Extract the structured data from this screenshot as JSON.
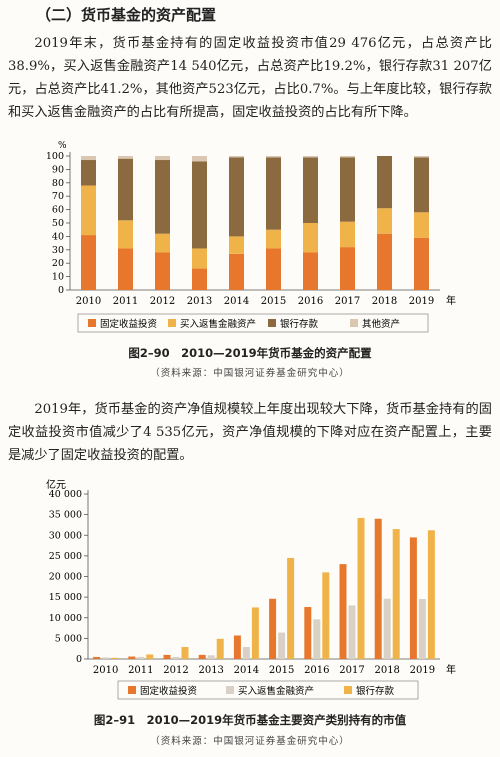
{
  "section": {
    "heading": "（二）货币基金的资产配置",
    "para1": "2019年末，货币基金持有的固定收益投资市值29 476亿元，占总资产比38.9%，买入返售金融资产14 540亿元，占总资产比19.2%，银行存款31 207亿元，占总资产比41.2%，其他资产523亿元，占比0.7%。与上年度比较，银行存款和买入返售金融资产的占比有所提高，固定收益投资的占比有所下降。",
    "para2": "2019年，货币基金的资产净值规模较上年度出现较大下降，货币基金持有的固定收益投资市值减少了4 535亿元，资产净值规模的下降对应在资产配置上，主要是减少了固定收益投资的配置。"
  },
  "figures": [
    {
      "caption": "图2–90　2010—2019年货币基金的资产配置",
      "source": "（资料来源：中国银河证券基金研究中心）"
    },
    {
      "caption": "图2–91　2010—2019年货币基金主要资产类别持有的市值",
      "source": "（资料来源：中国银河证券基金研究中心）"
    }
  ],
  "chart_data": [
    {
      "type": "bar",
      "stacked": true,
      "title": "",
      "ylabel": "%",
      "xlabel_suffix": "年",
      "ylim": [
        0,
        100
      ],
      "yticks": [
        0,
        10,
        20,
        30,
        40,
        50,
        60,
        70,
        80,
        90,
        100
      ],
      "categories": [
        "2010",
        "2011",
        "2012",
        "2013",
        "2014",
        "2015",
        "2016",
        "2017",
        "2018",
        "2019"
      ],
      "series": [
        {
          "name": "固定收益投资",
          "color": "#e8772e",
          "values": [
            41,
            31,
            28,
            16,
            27,
            31,
            28,
            32,
            42,
            39
          ]
        },
        {
          "name": "买入返售金融资产",
          "color": "#f0b34a",
          "values": [
            37,
            21,
            14,
            15,
            13,
            14,
            22,
            19,
            19,
            19
          ]
        },
        {
          "name": "银行存款",
          "color": "#8c6a3f",
          "values": [
            19,
            46,
            55,
            65,
            59,
            54,
            49,
            48,
            39,
            41
          ]
        },
        {
          "name": "其他资产",
          "color": "#d9c7b2",
          "values": [
            3,
            2,
            3,
            4,
            1,
            1,
            1,
            1,
            0,
            1
          ]
        }
      ],
      "legend_position": "bottom"
    },
    {
      "type": "bar",
      "stacked": false,
      "title": "",
      "ylabel": "亿元",
      "xlabel_suffix": "年",
      "ylim": [
        0,
        40000
      ],
      "yticks": [
        0,
        5000,
        10000,
        15000,
        20000,
        25000,
        30000,
        35000,
        40000
      ],
      "ytick_labels": [
        "0",
        "5 000",
        "10 000",
        "15 000",
        "20 000",
        "25 000",
        "30 000",
        "35 000",
        "40 000"
      ],
      "categories": [
        "2010",
        "2011",
        "2012",
        "2013",
        "2014",
        "2015",
        "2016",
        "2017",
        "2018",
        "2019"
      ],
      "series": [
        {
          "name": "固定收益投资",
          "color": "#e8772e",
          "values": [
            500,
            600,
            1000,
            1000,
            5700,
            14600,
            12600,
            23000,
            34000,
            29476
          ]
        },
        {
          "name": "买入返售金融资产",
          "color": "#d9d1c6",
          "values": [
            400,
            500,
            500,
            900,
            2900,
            6400,
            9600,
            13000,
            14600,
            14540
          ]
        },
        {
          "name": "银行存款",
          "color": "#f0b34a",
          "values": [
            300,
            1100,
            2900,
            4900,
            12500,
            24500,
            21000,
            34200,
            31500,
            31207
          ]
        }
      ],
      "legend_position": "bottom"
    }
  ]
}
